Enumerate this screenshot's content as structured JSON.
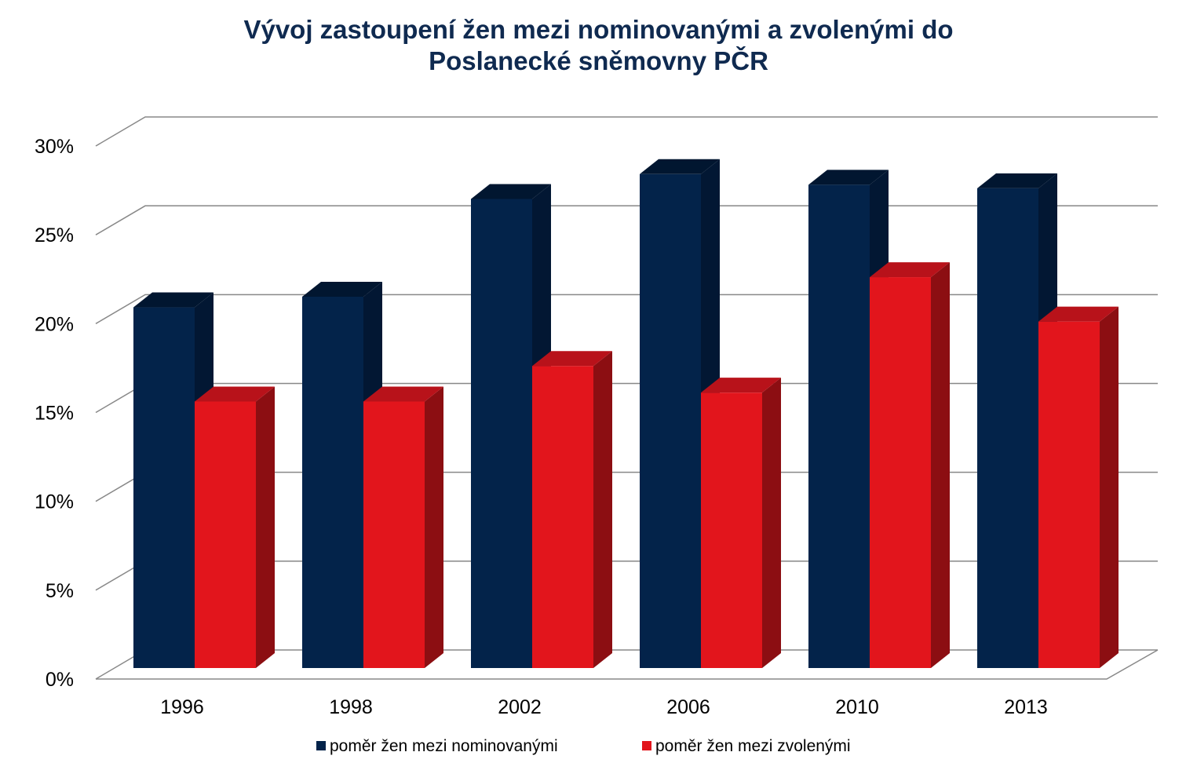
{
  "chart_data": {
    "type": "bar",
    "title_lines": [
      "Vývoj zastoupení žen mezi nominovanými a zvolenými do",
      "Poslanecké sněmovny PČR"
    ],
    "categories": [
      "1996",
      "1998",
      "2002",
      "2006",
      "2010",
      "2013"
    ],
    "series": [
      {
        "name": "poměr žen mezi nominovanými",
        "values": [
          20.3,
          20.9,
          26.4,
          27.8,
          27.2,
          27.0
        ],
        "color": "#03234a",
        "side_color": "#021733",
        "top_color": "#011630"
      },
      {
        "name": "poměr žen mezi zvolenými",
        "values": [
          15.0,
          15.0,
          17.0,
          15.5,
          22.0,
          19.5
        ],
        "color": "#e2151c",
        "side_color": "#8c0e12",
        "top_color": "#b8121a"
      }
    ],
    "ylim": [
      0,
      30
    ],
    "ytick_values": [
      0,
      5,
      10,
      15,
      20,
      25,
      30
    ],
    "ytick_labels": [
      "0%",
      "5%",
      "10%",
      "15%",
      "20%",
      "25%",
      "30%"
    ],
    "xlabel": "",
    "ylabel": "",
    "grid": true,
    "legend_position": "bottom",
    "projection": "3d-clustered"
  }
}
